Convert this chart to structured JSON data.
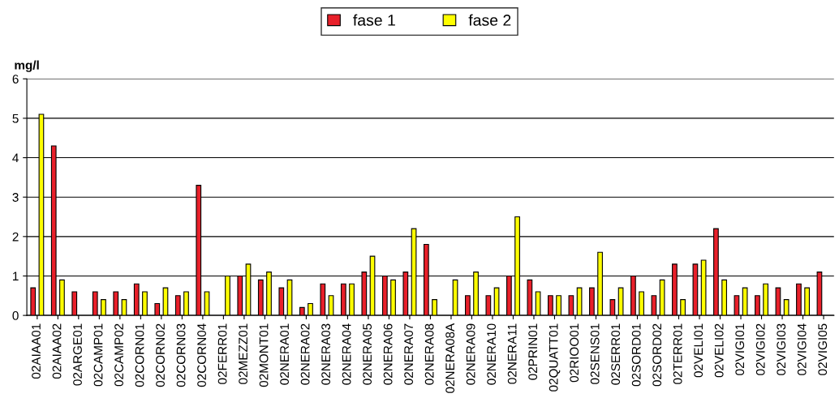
{
  "chart_data": {
    "type": "bar",
    "ylabel": "mg/l",
    "categories": [
      "02AIAA01",
      "02AIAA02",
      "02ARGE01",
      "02CAMP01",
      "02CAMP02",
      "02CORN01",
      "02CORN02",
      "02CORN03",
      "02CORN04",
      "02FERR01",
      "02MEZZ01",
      "02MONT01",
      "02NERA01",
      "02NERA02",
      "02NERA03",
      "02NERA04",
      "02NERA05",
      "02NERA06",
      "02NERA07",
      "02NERA08",
      "02NERA08A",
      "02NERA09",
      "02NERA10",
      "02NERA11",
      "02PRIN01",
      "02QUATT01",
      "02RIOO01",
      "02SENS01",
      "02SERR01",
      "02SORD01",
      "02SORD02",
      "02TERR01",
      "02VELI01",
      "02VELI02",
      "02VIGI01",
      "02VIGI02",
      "02VIGI03",
      "02VIGI04",
      "02VIGI05"
    ],
    "series": [
      {
        "name": "fase 1",
        "color": "#e8202a",
        "values": [
          0.7,
          4.3,
          0.6,
          0.6,
          0.6,
          0.8,
          0.3,
          0.5,
          3.3,
          null,
          1.0,
          0.9,
          0.7,
          0.2,
          0.8,
          0.8,
          1.1,
          1.0,
          1.1,
          1.8,
          null,
          0.5,
          0.5,
          1.0,
          0.9,
          0.5,
          0.5,
          0.7,
          0.4,
          1.0,
          0.5,
          1.3,
          1.3,
          2.2,
          0.5,
          0.5,
          0.7,
          0.8,
          1.1
        ]
      },
      {
        "name": "fase 2",
        "color": "#ffff00",
        "values": [
          5.1,
          0.9,
          null,
          0.4,
          0.4,
          0.6,
          0.7,
          0.6,
          0.6,
          1.0,
          1.3,
          1.1,
          0.9,
          0.3,
          0.5,
          0.8,
          1.5,
          0.9,
          2.2,
          0.4,
          0.9,
          1.1,
          0.7,
          2.5,
          0.6,
          0.5,
          0.7,
          1.6,
          0.7,
          0.6,
          0.9,
          0.4,
          1.4,
          0.9,
          0.7,
          0.8,
          0.4,
          0.7,
          null
        ]
      }
    ],
    "ylim": [
      0,
      6
    ],
    "yticks": [
      0,
      1,
      2,
      3,
      4,
      5,
      6
    ],
    "grid": "y",
    "legend": "top"
  }
}
